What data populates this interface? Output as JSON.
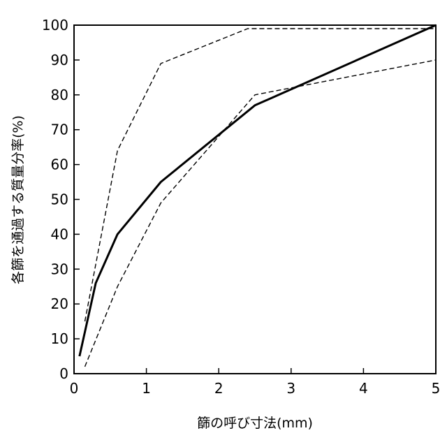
{
  "chart_data": {
    "type": "line",
    "xlabel": "篩の呼び寸法(mm)",
    "ylabel": "各篩を通過する質量分率(%)",
    "xlim": [
      0,
      5
    ],
    "ylim": [
      0,
      100
    ],
    "x_ticks": [
      0,
      1,
      2,
      3,
      4,
      5
    ],
    "y_ticks": [
      0,
      10,
      20,
      30,
      40,
      50,
      60,
      70,
      80,
      90,
      100
    ],
    "grid": false,
    "legend": "none",
    "series": [
      {
        "style": "solid",
        "color": "#000000",
        "points": [
          [
            0.075,
            5
          ],
          [
            0.3,
            26
          ],
          [
            0.6,
            40
          ],
          [
            1.2,
            55
          ],
          [
            2.5,
            77
          ],
          [
            5.0,
            100
          ]
        ]
      },
      {
        "style": "dashed",
        "color": "#000000",
        "points": [
          [
            0.15,
            15
          ],
          [
            0.6,
            64
          ],
          [
            1.2,
            89
          ],
          [
            2.4,
            99
          ],
          [
            5.0,
            99
          ]
        ]
      },
      {
        "style": "dashed",
        "color": "#000000",
        "points": [
          [
            0.15,
            2
          ],
          [
            0.6,
            25
          ],
          [
            1.2,
            49
          ],
          [
            2.5,
            80
          ],
          [
            5.0,
            90
          ]
        ]
      }
    ]
  }
}
